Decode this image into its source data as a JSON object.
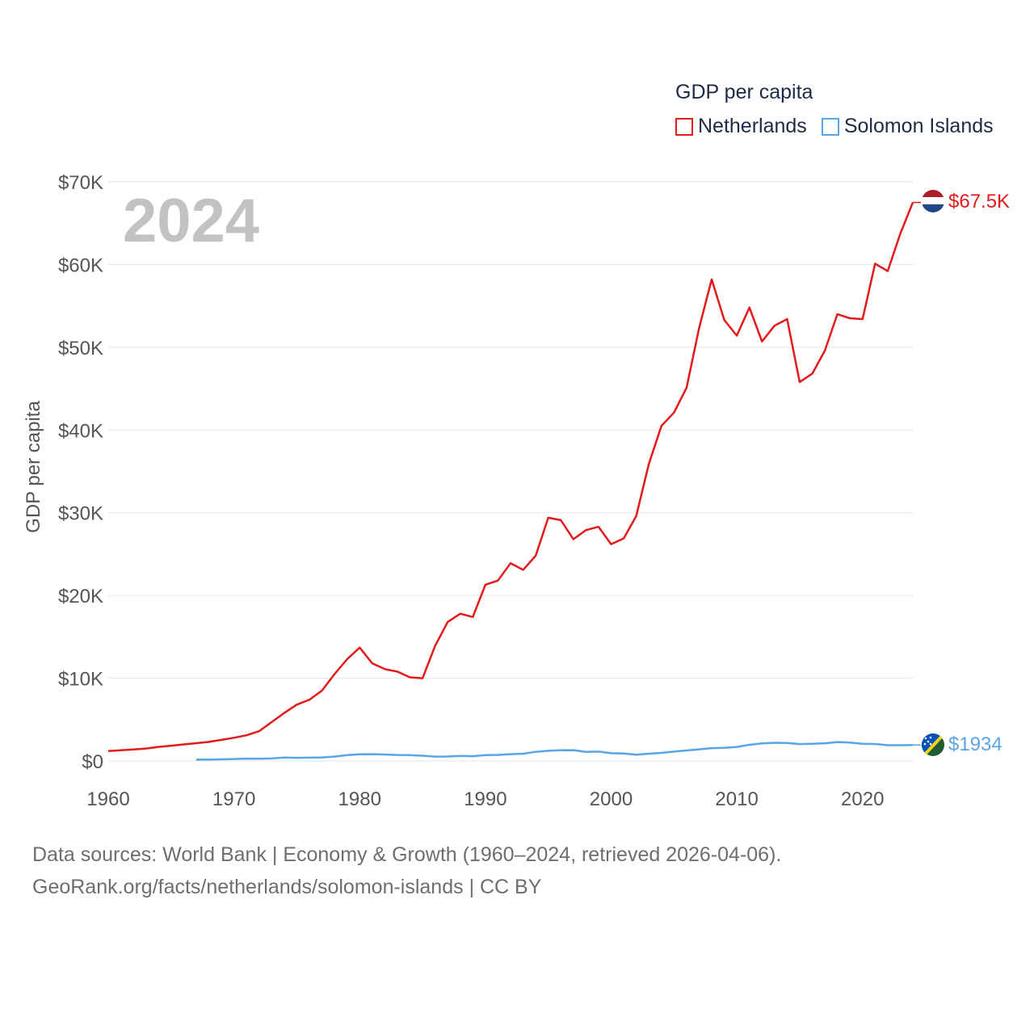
{
  "chart_data": {
    "type": "line",
    "title": "GDP per capita",
    "ylabel": "GDP per capita",
    "xlabel": "",
    "current_year_label": "2024",
    "xlim": [
      1960,
      2024
    ],
    "ylim": [
      0,
      70000
    ],
    "x_ticks": [
      1960,
      1970,
      1980,
      1990,
      2000,
      2010,
      2020
    ],
    "y_ticks": [
      {
        "value": 0,
        "label": "$0"
      },
      {
        "value": 10000,
        "label": "$10K"
      },
      {
        "value": 20000,
        "label": "$20K"
      },
      {
        "value": 30000,
        "label": "$30K"
      },
      {
        "value": 40000,
        "label": "$40K"
      },
      {
        "value": 50000,
        "label": "$50K"
      },
      {
        "value": 60000,
        "label": "$60K"
      },
      {
        "value": 70000,
        "label": "$70K"
      }
    ],
    "grid": true,
    "legend_position": "top-right",
    "series": [
      {
        "name": "Netherlands",
        "color": "#e31a1c",
        "end_label": "$67.5K",
        "flag": "netherlands-flag",
        "points": [
          [
            1960,
            1200
          ],
          [
            1961,
            1300
          ],
          [
            1962,
            1400
          ],
          [
            1963,
            1500
          ],
          [
            1964,
            1700
          ],
          [
            1965,
            1850
          ],
          [
            1966,
            2000
          ],
          [
            1967,
            2150
          ],
          [
            1968,
            2300
          ],
          [
            1969,
            2550
          ],
          [
            1970,
            2800
          ],
          [
            1971,
            3100
          ],
          [
            1972,
            3600
          ],
          [
            1973,
            4700
          ],
          [
            1974,
            5800
          ],
          [
            1975,
            6800
          ],
          [
            1976,
            7400
          ],
          [
            1977,
            8500
          ],
          [
            1978,
            10500
          ],
          [
            1979,
            12300
          ],
          [
            1980,
            13700
          ],
          [
            1981,
            11800
          ],
          [
            1982,
            11100
          ],
          [
            1983,
            10800
          ],
          [
            1984,
            10100
          ],
          [
            1985,
            10000
          ],
          [
            1986,
            13900
          ],
          [
            1987,
            16800
          ],
          [
            1988,
            17800
          ],
          [
            1989,
            17400
          ],
          [
            1990,
            21300
          ],
          [
            1991,
            21800
          ],
          [
            1992,
            23900
          ],
          [
            1993,
            23100
          ],
          [
            1994,
            24800
          ],
          [
            1995,
            29400
          ],
          [
            1996,
            29100
          ],
          [
            1997,
            26800
          ],
          [
            1998,
            27900
          ],
          [
            1999,
            28300
          ],
          [
            2000,
            26200
          ],
          [
            2001,
            26900
          ],
          [
            2002,
            29600
          ],
          [
            2003,
            35900
          ],
          [
            2004,
            40500
          ],
          [
            2005,
            42100
          ],
          [
            2006,
            45100
          ],
          [
            2007,
            52300
          ],
          [
            2008,
            58200
          ],
          [
            2009,
            53300
          ],
          [
            2010,
            51400
          ],
          [
            2011,
            54800
          ],
          [
            2012,
            50700
          ],
          [
            2013,
            52600
          ],
          [
            2014,
            53400
          ],
          [
            2015,
            45800
          ],
          [
            2016,
            46800
          ],
          [
            2017,
            49600
          ],
          [
            2018,
            54000
          ],
          [
            2019,
            53500
          ],
          [
            2020,
            53400
          ],
          [
            2021,
            60100
          ],
          [
            2022,
            59200
          ],
          [
            2023,
            63700
          ],
          [
            2024,
            67500
          ]
        ]
      },
      {
        "name": "Solomon Islands",
        "color": "#5aa4e8",
        "end_label": "$1934",
        "flag": "solomon-islands-flag",
        "points": [
          [
            1967,
            160
          ],
          [
            1968,
            180
          ],
          [
            1969,
            200
          ],
          [
            1970,
            230
          ],
          [
            1971,
            280
          ],
          [
            1972,
            260
          ],
          [
            1973,
            300
          ],
          [
            1974,
            410
          ],
          [
            1975,
            380
          ],
          [
            1976,
            400
          ],
          [
            1977,
            430
          ],
          [
            1978,
            530
          ],
          [
            1979,
            700
          ],
          [
            1980,
            800
          ],
          [
            1981,
            820
          ],
          [
            1982,
            780
          ],
          [
            1983,
            720
          ],
          [
            1984,
            700
          ],
          [
            1985,
            630
          ],
          [
            1986,
            530
          ],
          [
            1987,
            540
          ],
          [
            1988,
            610
          ],
          [
            1989,
            580
          ],
          [
            1990,
            700
          ],
          [
            1991,
            730
          ],
          [
            1992,
            820
          ],
          [
            1993,
            880
          ],
          [
            1994,
            1100
          ],
          [
            1995,
            1230
          ],
          [
            1996,
            1290
          ],
          [
            1997,
            1310
          ],
          [
            1998,
            1100
          ],
          [
            1999,
            1130
          ],
          [
            2000,
            940
          ],
          [
            2001,
            900
          ],
          [
            2002,
            750
          ],
          [
            2003,
            880
          ],
          [
            2004,
            980
          ],
          [
            2005,
            1130
          ],
          [
            2006,
            1270
          ],
          [
            2007,
            1410
          ],
          [
            2008,
            1550
          ],
          [
            2009,
            1580
          ],
          [
            2010,
            1700
          ],
          [
            2011,
            1950
          ],
          [
            2012,
            2120
          ],
          [
            2013,
            2200
          ],
          [
            2014,
            2170
          ],
          [
            2015,
            2040
          ],
          [
            2016,
            2080
          ],
          [
            2017,
            2140
          ],
          [
            2018,
            2280
          ],
          [
            2019,
            2230
          ],
          [
            2020,
            2070
          ],
          [
            2021,
            2050
          ],
          [
            2022,
            1900
          ],
          [
            2023,
            1900
          ],
          [
            2024,
            1934
          ]
        ]
      }
    ]
  },
  "legend": {
    "title": "GDP per capita",
    "items": [
      {
        "label": "Netherlands",
        "color": "#e31a1c"
      },
      {
        "label": "Solomon Islands",
        "color": "#5aa4e8"
      }
    ]
  },
  "footer": {
    "line1": "Data sources: World Bank | Economy & Growth (1960–2024, retrieved 2026-04-06).",
    "line2": "GeoRank.org/facts/netherlands/solomon-islands | CC BY"
  }
}
